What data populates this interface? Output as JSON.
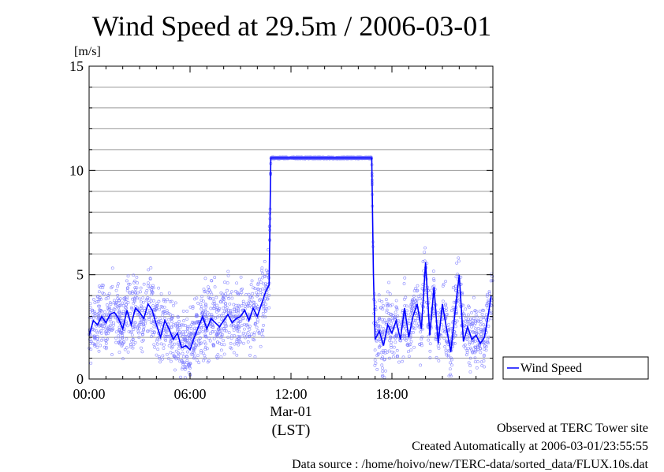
{
  "chart_data": {
    "type": "line",
    "title": "Wind Speed at 29.5m / 2006-03-01",
    "ylabel": "[m/s]",
    "ylim": [
      0,
      15
    ],
    "yticks": [
      0,
      5,
      10,
      15
    ],
    "xlim": [
      "2006-03-01 00:00",
      "2006-03-02 00:00"
    ],
    "x_tick_labels": [
      "00:00",
      "06:00",
      "12:00",
      "18:00"
    ],
    "x_date_label": "Mar-01",
    "x_timezone_label": "(LST)",
    "grid": true,
    "legend_position": "right",
    "series": [
      {
        "name": "Wind Speed",
        "color": "#0000ff",
        "scatter_color": "#7777ff",
        "x_hours": [
          0.0,
          0.25,
          0.5,
          0.75,
          1.0,
          1.25,
          1.5,
          1.75,
          2.0,
          2.25,
          2.5,
          2.75,
          3.0,
          3.25,
          3.5,
          3.75,
          4.0,
          4.25,
          4.5,
          4.75,
          5.0,
          5.25,
          5.5,
          5.75,
          6.0,
          6.25,
          6.5,
          6.75,
          7.0,
          7.25,
          7.5,
          7.75,
          8.0,
          8.25,
          8.5,
          8.75,
          9.0,
          9.25,
          9.5,
          9.75,
          10.0,
          10.25,
          10.5,
          10.7,
          10.8,
          13.0,
          15.0,
          16.8,
          16.9,
          17.0,
          17.25,
          17.5,
          17.75,
          18.0,
          18.25,
          18.5,
          18.75,
          19.0,
          19.25,
          19.5,
          19.75,
          20.0,
          20.25,
          20.5,
          20.75,
          21.0,
          21.25,
          21.5,
          21.75,
          22.0,
          22.25,
          22.5,
          22.75,
          23.0,
          23.25,
          23.5,
          23.75,
          23.9
        ],
        "values": [
          2.1,
          2.8,
          2.6,
          3.0,
          2.7,
          3.1,
          3.2,
          2.9,
          2.4,
          3.3,
          2.6,
          3.4,
          3.2,
          2.9,
          3.6,
          3.3,
          2.6,
          2.0,
          2.8,
          2.4,
          1.9,
          2.2,
          1.5,
          1.6,
          1.4,
          2.0,
          2.5,
          3.0,
          2.4,
          2.9,
          2.7,
          2.5,
          2.8,
          3.1,
          2.7,
          2.9,
          3.0,
          3.3,
          2.8,
          3.4,
          3.0,
          3.6,
          4.2,
          4.5,
          10.6,
          10.6,
          10.6,
          10.6,
          5.0,
          1.9,
          2.3,
          1.6,
          2.6,
          2.2,
          2.8,
          1.9,
          3.4,
          2.0,
          3.0,
          3.6,
          2.4,
          5.6,
          2.1,
          4.4,
          1.7,
          3.6,
          2.4,
          1.3,
          3.2,
          5.0,
          1.8,
          2.5,
          1.9,
          2.1,
          1.7,
          2.0,
          3.2,
          4.0
        ]
      }
    ]
  },
  "footer": {
    "observed": "Observed at TERC Tower site",
    "created": "Created Automatically at 2006-03-01/23:55:55",
    "source": "Data source : /home/hoivo/new/TERC-data/sorted_data/FLUX.10s.dat"
  }
}
